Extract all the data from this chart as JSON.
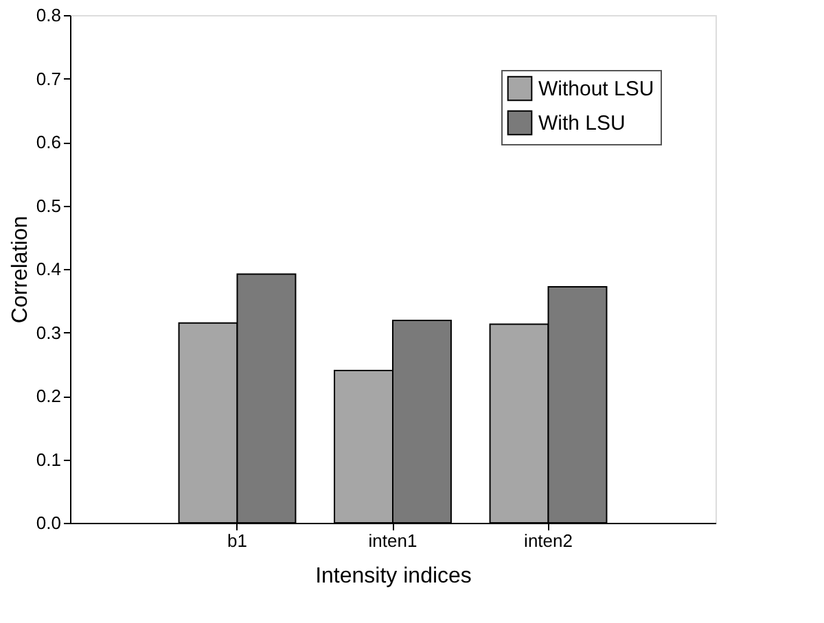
{
  "chart_data": {
    "type": "bar",
    "xlabel": "Intensity indices",
    "ylabel": "Correlation",
    "categories": [
      "b1",
      "inten1",
      "inten2"
    ],
    "series": [
      {
        "name": "Without LSU",
        "color": "#a6a6a6",
        "values": [
          0.315,
          0.24,
          0.313
        ]
      },
      {
        "name": "With  LSU",
        "color": "#7a7a7a",
        "values": [
          0.392,
          0.319,
          0.372
        ]
      }
    ],
    "ylim": [
      0,
      0.8
    ],
    "yticks": [
      {
        "value": 0,
        "label": "0.0"
      },
      {
        "value": 0.1,
        "label": "0.1"
      },
      {
        "value": 0.2,
        "label": "0.2"
      },
      {
        "value": 0.3,
        "label": "0.3"
      },
      {
        "value": 0.4,
        "label": "0.4"
      },
      {
        "value": 0.5,
        "label": "0.5"
      },
      {
        "value": 0.6,
        "label": "0.6"
      },
      {
        "value": 0.7,
        "label": "0.7"
      },
      {
        "value": 0.8,
        "label": "0.8"
      }
    ],
    "grid": false,
    "legend": "top right"
  }
}
